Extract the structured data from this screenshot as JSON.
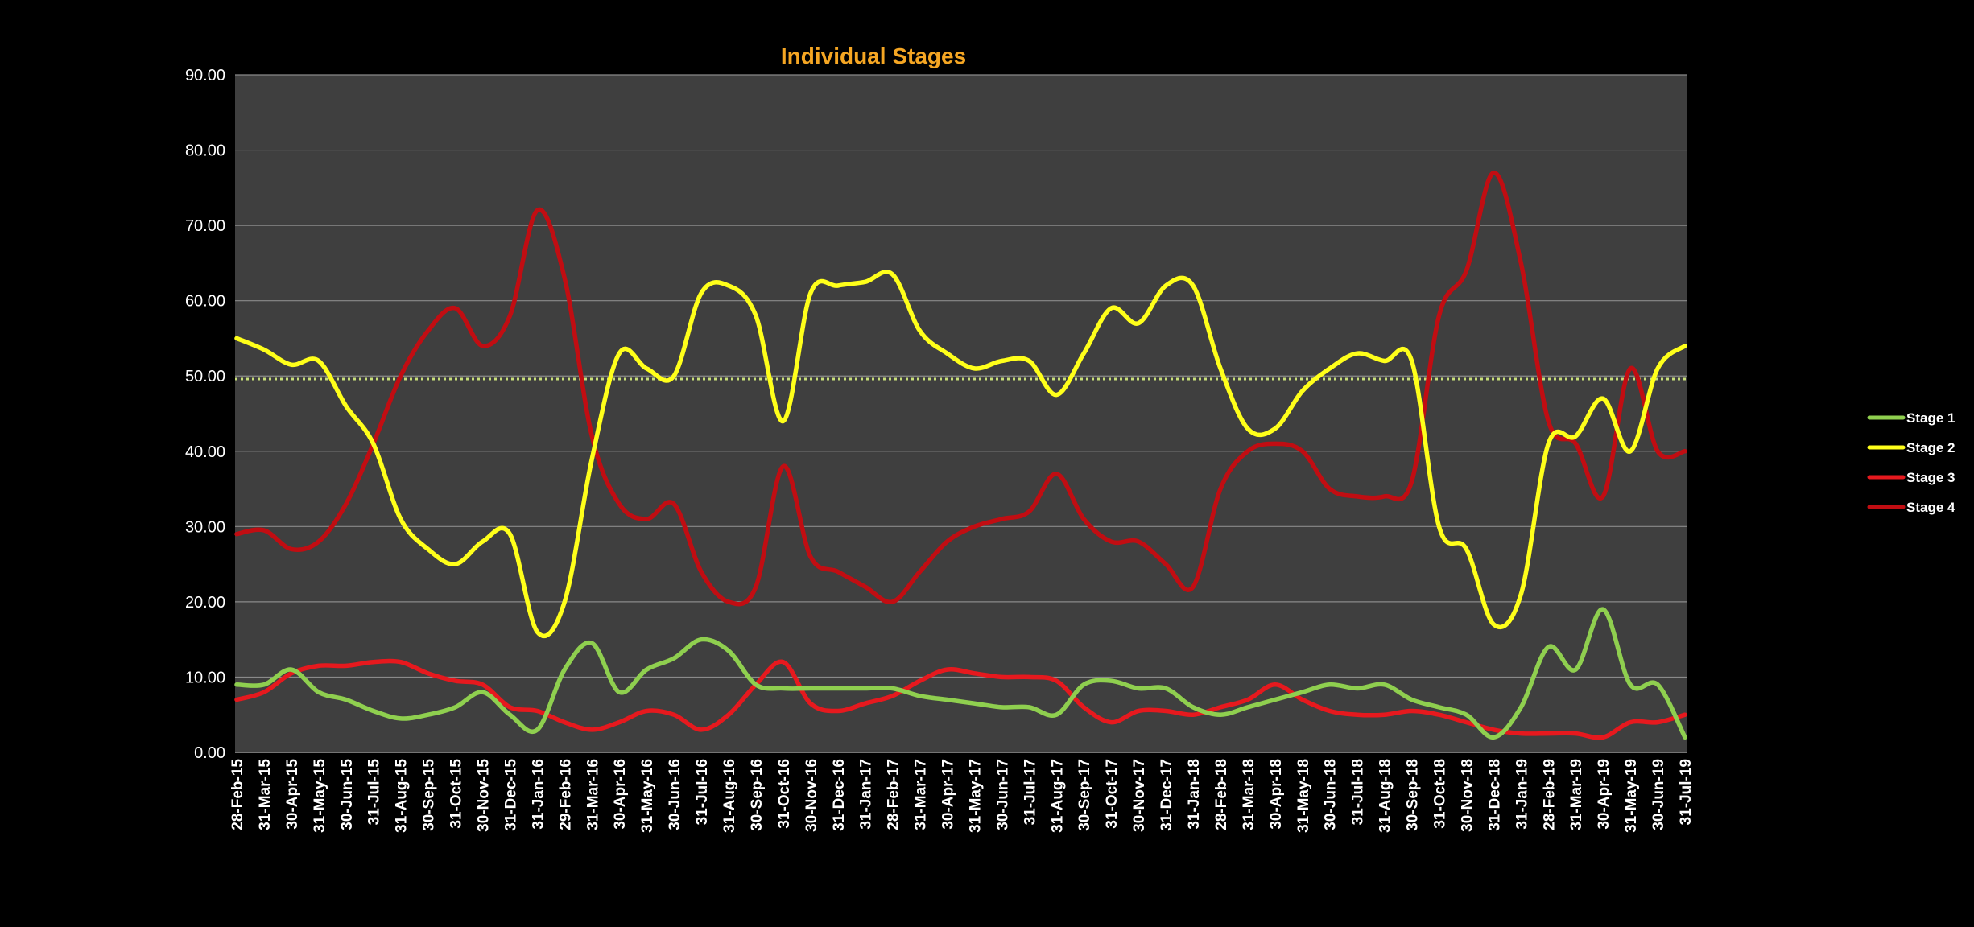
{
  "chart_data": {
    "type": "line",
    "title": "Individual Stages",
    "xlabel": "",
    "ylabel": "",
    "ylim": [
      0,
      90
    ],
    "y_ticks": [
      "0.00",
      "10.00",
      "20.00",
      "30.00",
      "40.00",
      "50.00",
      "60.00",
      "70.00",
      "80.00",
      "90.00"
    ],
    "x_tick_labels": [
      "28-Feb-15",
      "31-Mar-15",
      "30-Apr-15",
      "31-May-15",
      "30-Jun-15",
      "31-Jul-15",
      "31-Aug-15",
      "30-Sep-15",
      "31-Oct-15",
      "30-Nov-15",
      "31-Dec-15",
      "31-Jan-16",
      "29-Feb-16",
      "31-Mar-16",
      "30-Apr-16",
      "31-May-16",
      "30-Jun-16",
      "31-Jul-16",
      "31-Aug-16",
      "30-Sep-16",
      "31-Oct-16",
      "30-Nov-16",
      "31-Dec-16",
      "31-Jan-17",
      "28-Feb-17",
      "31-Mar-17",
      "30-Apr-17",
      "31-May-17",
      "30-Jun-17",
      "31-Jul-17",
      "31-Aug-17",
      "30-Sep-17",
      "31-Oct-17",
      "30-Nov-17",
      "31-Dec-17",
      "31-Jan-18",
      "28-Feb-18",
      "31-Mar-18",
      "30-Apr-18",
      "31-May-18",
      "30-Jun-18",
      "31-Jul-18",
      "31-Aug-18",
      "30-Sep-18",
      "31-Oct-18",
      "30-Nov-18",
      "31-Dec-18",
      "31-Jan-19",
      "28-Feb-19",
      "31-Mar-19",
      "30-Apr-19",
      "31-May-19",
      "30-Jun-19",
      "31-Jul-19"
    ],
    "reference_line": {
      "y": 49.6,
      "color": "#c9e07a"
    },
    "grid": true,
    "legend_position": "right",
    "background": "#3f3f3f",
    "series": [
      {
        "name": "Stage 1",
        "color": "#8fcf4f",
        "values": [
          9,
          9,
          11,
          8,
          7,
          5.5,
          4.5,
          5,
          6,
          8,
          5,
          3,
          11,
          14.5,
          8,
          11,
          12.5,
          15,
          13.5,
          9,
          8.5,
          8.5,
          8.5,
          8.5,
          8.5,
          7.5,
          7,
          6.5,
          6,
          6,
          5,
          9,
          9.5,
          8.5,
          8.5,
          6,
          5,
          6,
          7,
          8,
          9,
          8.5,
          9,
          7,
          6,
          5,
          2,
          6,
          14,
          11,
          19,
          9,
          9,
          2
        ]
      },
      {
        "name": "Stage 2",
        "color": "#ffff1a",
        "values": [
          55,
          53.5,
          51.5,
          52,
          46,
          41,
          31,
          27,
          25,
          28,
          29,
          16,
          20,
          39,
          53,
          51,
          50,
          61,
          62,
          58,
          44,
          61,
          62,
          62.5,
          63.5,
          56,
          53,
          51,
          52,
          52,
          47.5,
          53,
          59,
          57,
          62,
          62,
          51,
          43,
          43,
          48,
          51,
          53,
          52,
          52,
          30,
          27,
          17,
          21,
          41,
          42,
          47,
          40,
          51,
          54
        ]
      },
      {
        "name": "Stage 3",
        "color": "#e6191e",
        "values": [
          7,
          8,
          10.5,
          11.5,
          11.5,
          12,
          12,
          10.5,
          9.5,
          9,
          6,
          5.5,
          4,
          3,
          4,
          5.5,
          5,
          3,
          5,
          9,
          12,
          6.5,
          5.5,
          6.5,
          7.5,
          9.5,
          11,
          10.5,
          10,
          10,
          9.5,
          6,
          4,
          5.5,
          5.5,
          5,
          6,
          7,
          9,
          7,
          5.5,
          5,
          5,
          5.5,
          5,
          4,
          3,
          2.5,
          2.5,
          2.5,
          2,
          4,
          4,
          5
        ]
      },
      {
        "name": "Stage 4",
        "color": "#c10d12",
        "values": [
          29,
          29.5,
          27,
          28,
          33,
          41,
          50,
          56,
          59,
          54,
          58,
          72,
          63,
          42,
          33,
          31,
          33,
          24,
          20,
          22,
          38,
          26,
          24,
          22,
          20,
          24,
          28,
          30,
          31,
          32,
          37,
          31,
          28,
          28,
          25,
          22,
          35,
          40,
          41,
          40,
          35,
          34,
          34,
          36,
          58,
          64,
          77,
          65,
          44,
          41,
          34,
          51,
          40,
          40
        ]
      }
    ]
  }
}
